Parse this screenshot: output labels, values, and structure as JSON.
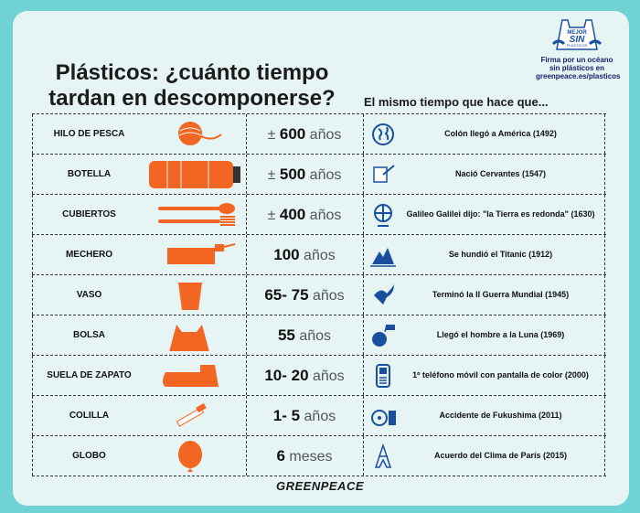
{
  "title_line1": "Plásticos: ¿cuánto tiempo",
  "title_line2": "tardan en descomponerse?",
  "subtitle": "El mismo tiempo que hace que...",
  "logo": {
    "line1": "MEJOR",
    "line2": "SIN",
    "line3": "PLÁSTICOS",
    "caption1": "Firma por un océano",
    "caption2": "sin plásticos en",
    "caption3": "greenpeace.es/plasticos"
  },
  "rows": [
    {
      "item": "HILO DE PESCA",
      "prefix": "± ",
      "num": "600",
      "unit": " años",
      "event": "Colón llegó a América (1492)",
      "icon": "fishing-line",
      "event_icon": "globe"
    },
    {
      "item": "BOTELLA",
      "prefix": "± ",
      "num": "500",
      "unit": " años",
      "event": "Nació Cervantes (1547)",
      "icon": "bottle",
      "event_icon": "quill"
    },
    {
      "item": "CUBIERTOS",
      "prefix": "± ",
      "num": "400",
      "unit": " años",
      "event": "Galileo Galilei dijo: \"la Tierra es redonda\" (1630)",
      "icon": "cutlery",
      "event_icon": "desk-globe"
    },
    {
      "item": "MECHERO",
      "prefix": "",
      "num": "100",
      "unit": " años",
      "event": "Se hundió el Titanic (1912)",
      "icon": "lighter",
      "event_icon": "iceberg"
    },
    {
      "item": "VASO",
      "prefix": "",
      "num": "65- 75",
      "unit": " años",
      "event": "Terminó la II Guerra Mundial (1945)",
      "icon": "cup",
      "event_icon": "dove"
    },
    {
      "item": "BOLSA",
      "prefix": "",
      "num": "55",
      "unit": " años",
      "event": "Llegó el hombre a la Luna (1969)",
      "icon": "bag",
      "event_icon": "moon-flag"
    },
    {
      "item": "SUELA DE ZAPATO",
      "prefix": "",
      "num": "10- 20",
      "unit": " años",
      "event": "1º teléfono móvil con pantalla de color (2000)",
      "icon": "shoe-sole",
      "event_icon": "phone"
    },
    {
      "item": "COLILLA",
      "prefix": "",
      "num": "1- 5",
      "unit": " años",
      "event": "Accidente de Fukushima (2011)",
      "icon": "cigarette",
      "event_icon": "nuclear"
    },
    {
      "item": "GLOBO",
      "prefix": "",
      "num": "6",
      "unit": " meses",
      "event": "Acuerdo del Clima de París (2015)",
      "icon": "balloon",
      "event_icon": "eiffel"
    }
  ],
  "footer": "GREENPEACE",
  "colors": {
    "accent": "#f26522",
    "background": "#6fd3d6",
    "card": "#e6f4f3",
    "icon_blue": "#1a4fa0"
  }
}
